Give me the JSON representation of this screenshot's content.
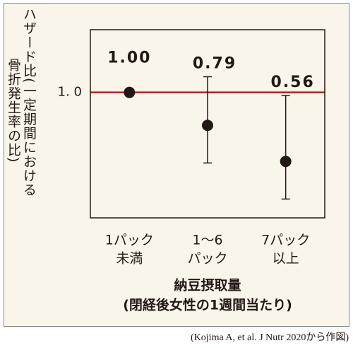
{
  "chart_data": {
    "type": "errorbar",
    "y_label": [
      "ハザード比(一定期間における",
      "骨折発生率の比)"
    ],
    "x_label": "納豆摂取量",
    "x_sublabel": "(閉経後女性の1週間当たり)",
    "source": "(Kojima A, et al. J Nutr 2020から作図)",
    "categories": [
      [
        "1パック",
        "未満"
      ],
      [
        "1〜6",
        "パック"
      ],
      [
        "7パック",
        "以上"
      ]
    ],
    "series": [
      {
        "color": "#231815",
        "values": [
          1.0,
          0.79,
          0.56
        ],
        "value_labels": [
          "1.00",
          "0.79",
          "0.56"
        ],
        "ci_low": [
          null,
          0.55,
          0.32
        ],
        "ci_high": [
          null,
          1.1,
          0.98
        ]
      }
    ],
    "ylim": [
      0.2,
      1.4
    ],
    "yticks": [
      {
        "value": 1.0,
        "label": "1. 0"
      }
    ],
    "reference_color": "#c8161d",
    "background": "#faf5ea"
  }
}
